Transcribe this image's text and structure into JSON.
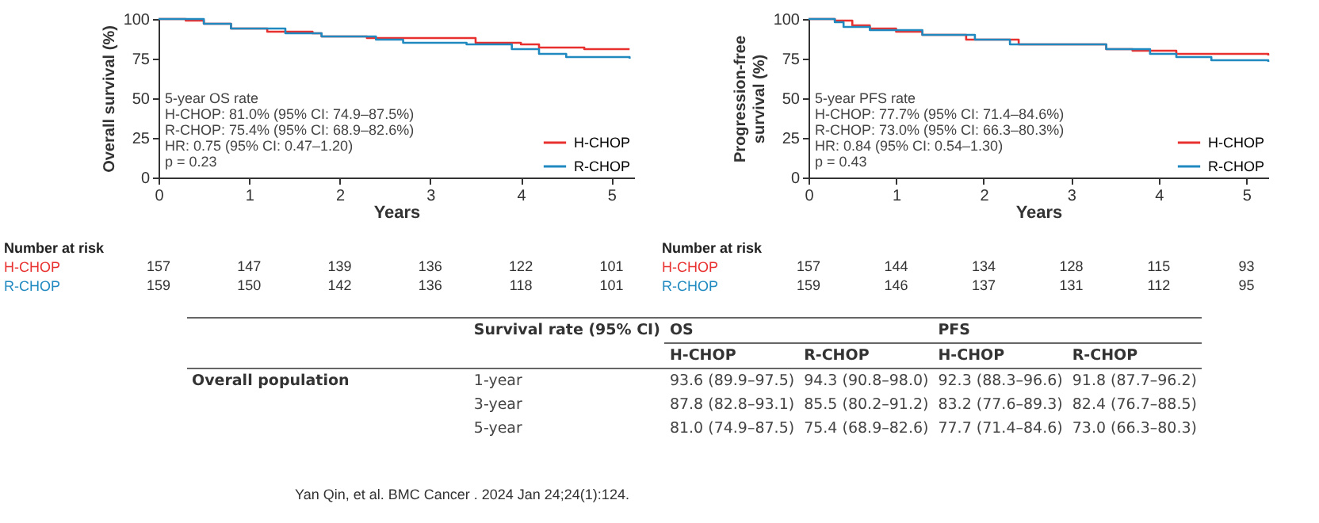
{
  "chart_data": [
    {
      "type": "step",
      "xlabel": "Years",
      "ylabel": "Overall survival (%)",
      "xlim": [
        0,
        5.25
      ],
      "xticks": [
        0,
        1,
        2,
        3,
        4,
        5
      ],
      "ylim": [
        0,
        100
      ],
      "yticks": [
        0,
        25,
        50,
        75,
        100
      ],
      "legend": "bottom right",
      "series": [
        {
          "name": "H-CHOP",
          "color": "#e8312f",
          "x": [
            0,
            0.3,
            0.5,
            0.8,
            1.2,
            1.7,
            1.8,
            2.3,
            3.5,
            4.0,
            4.2,
            4.7,
            5.2
          ],
          "values": [
            100,
            99,
            97,
            94,
            92,
            91,
            89,
            88,
            85,
            84,
            82,
            81,
            81
          ]
        },
        {
          "name": "R-CHOP",
          "color": "#2089c0",
          "x": [
            0,
            0.5,
            0.8,
            1.4,
            1.8,
            2.4,
            2.7,
            3.4,
            3.9,
            4.2,
            4.5,
            5.2
          ],
          "values": [
            100,
            97,
            94,
            91,
            89,
            87,
            85,
            84,
            81,
            78,
            76,
            75
          ]
        }
      ],
      "annotations": [
        "5-year OS rate",
        "H-CHOP: 81.0% (95% CI: 74.9–87.5%)",
        "R-CHOP: 75.4% (95% CI: 68.9–82.6%)",
        "HR: 0.75 (95% CI: 0.47–1.20)",
        "p = 0.23",
        "Number at risk",
        "157",
        "147",
        "139",
        "136",
        "122",
        "101",
        "159",
        "150",
        "142",
        "136",
        "118",
        "101"
      ]
    },
    {
      "type": "step",
      "xlabel": "Years",
      "ylabel": "Progression-free survival (%)",
      "xlim": [
        0,
        5.25
      ],
      "xticks": [
        0,
        1,
        2,
        3,
        4,
        5
      ],
      "ylim": [
        0,
        100
      ],
      "yticks": [
        0,
        25,
        50,
        75,
        100
      ],
      "legend": "bottom right",
      "series": [
        {
          "name": "H-CHOP",
          "color": "#e8312f",
          "x": [
            0,
            0.3,
            0.5,
            0.7,
            1.0,
            1.3,
            1.8,
            2.4,
            3.4,
            3.7,
            4.2,
            5.25
          ],
          "values": [
            100,
            99,
            96,
            94,
            92,
            90,
            87,
            84,
            81,
            80,
            78,
            77
          ]
        },
        {
          "name": "R-CHOP",
          "color": "#2089c0",
          "x": [
            0,
            0.3,
            0.4,
            0.7,
            1.3,
            1.9,
            2.3,
            3.4,
            3.9,
            4.2,
            4.6,
            5.25
          ],
          "values": [
            100,
            98,
            95,
            93,
            90,
            87,
            84,
            81,
            78,
            76,
            74,
            73
          ]
        }
      ],
      "annotations": [
        "5-year PFS rate",
        "H-CHOP: 77.7% (95% CI: 71.4–84.6%)",
        "R-CHOP: 73.0% (95% CI: 66.3–80.3%)",
        "HR: 0.84 (95% CI: 0.54–1.30)",
        "p = 0.43",
        "Number at risk",
        "157",
        "144",
        "134",
        "128",
        "115",
        "93",
        "159",
        "146",
        "137",
        "131",
        "112",
        "95"
      ]
    },
    {
      "type": "other",
      "annotations": [
        "Survival rate (95% CI)",
        "OS",
        "PFS",
        "H-CHOP",
        "R-CHOP",
        "H-CHOP",
        "R-CHOP",
        "Overall population",
        "1-year",
        "93.6 (89.9–97.5)",
        "94.3 (90.8–98.0)",
        "92.3 (88.3–96.6)",
        "91.8 (87.7–96.2)",
        "3-year",
        "87.8 (82.8–93.1)",
        "85.5 (80.2–91.2)",
        "83.2 (77.6–89.3)",
        "82.4 (76.7–88.5)",
        "5-year",
        "81.0 (74.9–87.5)",
        "75.4 (68.9–82.6)",
        "77.7 (71.4–84.6)",
        "73.0 (66.3–80.3)",
        "Yan Qin, et al. BMC Cancer . 2024 Jan 24;24(1):124."
      ]
    }
  ]
}
